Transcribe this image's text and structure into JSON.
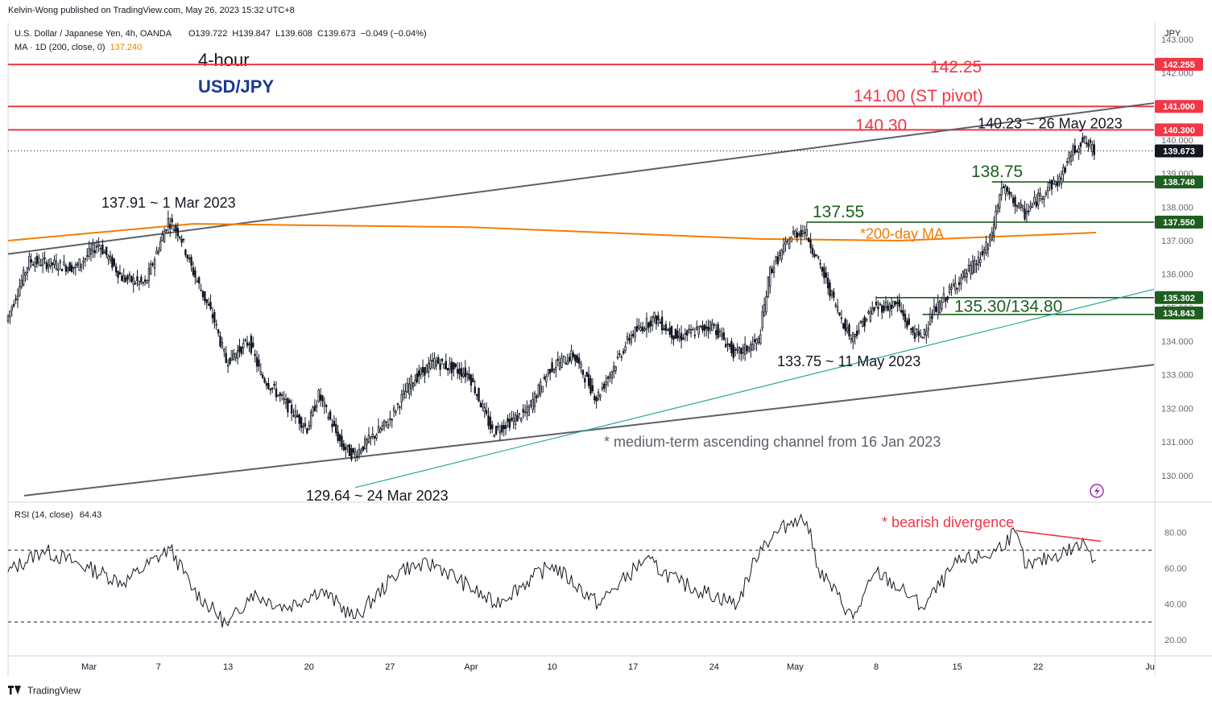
{
  "header": {
    "publisher": "Kelvin-Wong published on TradingView.com, May 26, 2023 15:32 UTC+8",
    "symbol_line": "U.S. Dollar / Japanese Yen, 4h, OANDA",
    "ohlc": {
      "o": "O139.722",
      "h": "H139.847",
      "l": "L139.608",
      "c": "C139.673",
      "chg": "−0.049 (−0.04%)"
    },
    "ma_line": "MA · 1D (200, close, 0)",
    "ma_value": "137.240"
  },
  "titles": {
    "timeframe": "4-hour",
    "pair": "USD/JPY"
  },
  "axis": {
    "currency": "JPY",
    "y_ticks": [
      "143.000",
      "142.000",
      "141.000",
      "140.000",
      "139.000",
      "138.000",
      "137.000",
      "136.000",
      "135.000",
      "134.000",
      "133.000",
      "132.000",
      "131.000",
      "130.000"
    ],
    "y_tick_values": [
      143,
      142,
      141,
      140,
      139,
      138,
      137,
      136,
      135,
      134,
      133,
      132,
      131,
      130
    ],
    "x_ticks": [
      "Mar",
      "7",
      "13",
      "20",
      "27",
      "Apr",
      "10",
      "17",
      "24",
      "May",
      "8",
      "15",
      "22",
      "Ju"
    ],
    "rsi_ticks": [
      "80.00",
      "60.00",
      "40.00",
      "20.00"
    ],
    "rsi_tick_values": [
      80,
      60,
      40,
      20
    ]
  },
  "price_tags": [
    {
      "label": "142.255",
      "value": 142.255,
      "color": "#f23645"
    },
    {
      "label": "141.000",
      "value": 141.0,
      "color": "#f23645"
    },
    {
      "label": "140.300",
      "value": 140.3,
      "color": "#f23645"
    },
    {
      "label": "139.673",
      "value": 139.673,
      "color": "#131722"
    },
    {
      "label": "138.748",
      "value": 138.748,
      "color": "#1e5e20"
    },
    {
      "label": "137.550",
      "value": 137.55,
      "color": "#1e5e20"
    },
    {
      "label": "135.302",
      "value": 135.302,
      "color": "#1e5e20"
    },
    {
      "label": "134.843",
      "value": 134.843,
      "color": "#1e5e20"
    }
  ],
  "annotations": {
    "r1": "142.25",
    "r2": "141.00 (ST pivot)",
    "r3": "140.30",
    "high_now": "140.23 ~ 26 May 2023",
    "s1": "138.75",
    "s2": "137.55",
    "ma_note": "*200-day MA",
    "s3": "135.30/134.80",
    "low_may": "133.75 ~ 11 May 2023",
    "high_mar": "137.91 ~ 1 Mar 2023",
    "low_mar": "129.64 ~ 24 Mar 2023",
    "channel_note": "* medium-term ascending channel from 16 Jan 2023",
    "divergence_note": "* bearish divergence"
  },
  "rsi": {
    "label": "RSI (14, close)",
    "value": "64.43"
  },
  "footer": {
    "brand": "TradingView"
  },
  "colors": {
    "resistance": "#f23645",
    "support": "#1e5e20",
    "ma": "#f57c00",
    "channel": "#5d606b",
    "trend": "#26a69a",
    "candle": "#131722",
    "rsi_line": "#131722",
    "divergence": "#f23645"
  },
  "chart_data": [
    {
      "type": "candlestick",
      "title": "U.S. Dollar / Japanese Yen, 4h, OANDA",
      "x_range": [
        "2023-02-22",
        "2023-06-01"
      ],
      "ylim": [
        129.3,
        143.5
      ],
      "key_levels": [
        {
          "value": 142.25,
          "kind": "resistance"
        },
        {
          "value": 141.0,
          "kind": "resistance",
          "note": "ST pivot"
        },
        {
          "value": 140.3,
          "kind": "resistance"
        },
        {
          "value": 138.75,
          "kind": "support"
        },
        {
          "value": 137.55,
          "kind": "support"
        },
        {
          "value": 135.3,
          "kind": "support"
        },
        {
          "value": 134.8,
          "kind": "support"
        }
      ],
      "swings": [
        {
          "date": "2023-03-01",
          "value": 137.91
        },
        {
          "date": "2023-03-24",
          "value": 129.64
        },
        {
          "date": "2023-05-11",
          "value": 133.75
        },
        {
          "date": "2023-05-26",
          "value": 140.23
        }
      ],
      "close_path": [
        {
          "date": "2023-02-22",
          "close": 134.6
        },
        {
          "date": "2023-02-24",
          "close": 136.4
        },
        {
          "date": "2023-02-28",
          "close": 136.2
        },
        {
          "date": "2023-03-02",
          "close": 136.9
        },
        {
          "date": "2023-03-04",
          "close": 135.9
        },
        {
          "date": "2023-03-06",
          "close": 135.7
        },
        {
          "date": "2023-03-08",
          "close": 137.6
        },
        {
          "date": "2023-03-09",
          "close": 137.2
        },
        {
          "date": "2023-03-10",
          "close": 136.2
        },
        {
          "date": "2023-03-12",
          "close": 134.6
        },
        {
          "date": "2023-03-13",
          "close": 133.4
        },
        {
          "date": "2023-03-15",
          "close": 134.0
        },
        {
          "date": "2023-03-16",
          "close": 133.0
        },
        {
          "date": "2023-03-18",
          "close": 132.2
        },
        {
          "date": "2023-03-20",
          "close": 131.4
        },
        {
          "date": "2023-03-21",
          "close": 132.4
        },
        {
          "date": "2023-03-23",
          "close": 130.9
        },
        {
          "date": "2023-03-24",
          "close": 130.6
        },
        {
          "date": "2023-03-27",
          "close": 131.6
        },
        {
          "date": "2023-03-29",
          "close": 132.8
        },
        {
          "date": "2023-03-31",
          "close": 133.4
        },
        {
          "date": "2023-04-03",
          "close": 133.0
        },
        {
          "date": "2023-04-05",
          "close": 131.3
        },
        {
          "date": "2023-04-06",
          "close": 131.5
        },
        {
          "date": "2023-04-08",
          "close": 131.9
        },
        {
          "date": "2023-04-10",
          "close": 133.2
        },
        {
          "date": "2023-04-12",
          "close": 133.6
        },
        {
          "date": "2023-04-14",
          "close": 132.3
        },
        {
          "date": "2023-04-17",
          "close": 134.2
        },
        {
          "date": "2023-04-19",
          "close": 134.7
        },
        {
          "date": "2023-04-21",
          "close": 134.1
        },
        {
          "date": "2023-04-24",
          "close": 134.5
        },
        {
          "date": "2023-04-26",
          "close": 133.6
        },
        {
          "date": "2023-04-28",
          "close": 134.0
        },
        {
          "date": "2023-04-29",
          "close": 136.1
        },
        {
          "date": "2023-05-01",
          "close": 137.2
        },
        {
          "date": "2023-05-02",
          "close": 137.3
        },
        {
          "date": "2023-05-03",
          "close": 136.5
        },
        {
          "date": "2023-05-05",
          "close": 134.8
        },
        {
          "date": "2023-05-06",
          "close": 134.1
        },
        {
          "date": "2023-05-08",
          "close": 135.0
        },
        {
          "date": "2023-05-10",
          "close": 135.1
        },
        {
          "date": "2023-05-11",
          "close": 134.4
        },
        {
          "date": "2023-05-12",
          "close": 134.1
        },
        {
          "date": "2023-05-13",
          "close": 134.8
        },
        {
          "date": "2023-05-15",
          "close": 135.7
        },
        {
          "date": "2023-05-17",
          "close": 136.4
        },
        {
          "date": "2023-05-18",
          "close": 137.0
        },
        {
          "date": "2023-05-19",
          "close": 138.6
        },
        {
          "date": "2023-05-20",
          "close": 138.2
        },
        {
          "date": "2023-05-21",
          "close": 137.8
        },
        {
          "date": "2023-05-23",
          "close": 138.6
        },
        {
          "date": "2023-05-24",
          "close": 138.8
        },
        {
          "date": "2023-05-25",
          "close": 139.6
        },
        {
          "date": "2023-05-26",
          "close": 140.0
        },
        {
          "date": "2023-05-27",
          "close": 139.67
        }
      ],
      "moving_average_200d": [
        {
          "date": "2023-02-22",
          "value": 137.0
        },
        {
          "date": "2023-03-10",
          "value": 137.5
        },
        {
          "date": "2023-04-03",
          "value": 137.4
        },
        {
          "date": "2023-04-28",
          "value": 137.05
        },
        {
          "date": "2023-05-10",
          "value": 137.0
        },
        {
          "date": "2023-05-27",
          "value": 137.24
        }
      ]
    },
    {
      "type": "line",
      "title": "RSI (14, close)",
      "ylim": [
        12,
        95
      ],
      "reference_lines": [
        70,
        30
      ],
      "series": [
        {
          "name": "RSI (14, close)",
          "points": [
            {
              "date": "2023-02-22",
              "value": 58
            },
            {
              "date": "2023-02-25",
              "value": 70
            },
            {
              "date": "2023-03-01",
              "value": 60
            },
            {
              "date": "2023-03-04",
              "value": 52
            },
            {
              "date": "2023-03-08",
              "value": 71
            },
            {
              "date": "2023-03-10",
              "value": 48
            },
            {
              "date": "2023-03-13",
              "value": 28
            },
            {
              "date": "2023-03-15",
              "value": 46
            },
            {
              "date": "2023-03-18",
              "value": 38
            },
            {
              "date": "2023-03-21",
              "value": 48
            },
            {
              "date": "2023-03-24",
              "value": 32
            },
            {
              "date": "2023-03-28",
              "value": 60
            },
            {
              "date": "2023-03-31",
              "value": 62
            },
            {
              "date": "2023-04-05",
              "value": 40
            },
            {
              "date": "2023-04-10",
              "value": 62
            },
            {
              "date": "2023-04-14",
              "value": 40
            },
            {
              "date": "2023-04-18",
              "value": 65
            },
            {
              "date": "2023-04-21",
              "value": 52
            },
            {
              "date": "2023-04-26",
              "value": 40
            },
            {
              "date": "2023-04-28",
              "value": 72
            },
            {
              "date": "2023-05-01",
              "value": 88
            },
            {
              "date": "2023-05-02",
              "value": 86
            },
            {
              "date": "2023-05-03",
              "value": 60
            },
            {
              "date": "2023-05-06",
              "value": 32
            },
            {
              "date": "2023-05-08",
              "value": 58
            },
            {
              "date": "2023-05-11",
              "value": 44
            },
            {
              "date": "2023-05-12",
              "value": 38
            },
            {
              "date": "2023-05-15",
              "value": 63
            },
            {
              "date": "2023-05-18",
              "value": 68
            },
            {
              "date": "2023-05-20",
              "value": 80
            },
            {
              "date": "2023-05-21",
              "value": 60
            },
            {
              "date": "2023-05-23",
              "value": 66
            },
            {
              "date": "2023-05-25",
              "value": 71
            },
            {
              "date": "2023-05-26",
              "value": 74
            },
            {
              "date": "2023-05-27",
              "value": 64.43
            }
          ]
        }
      ]
    }
  ]
}
